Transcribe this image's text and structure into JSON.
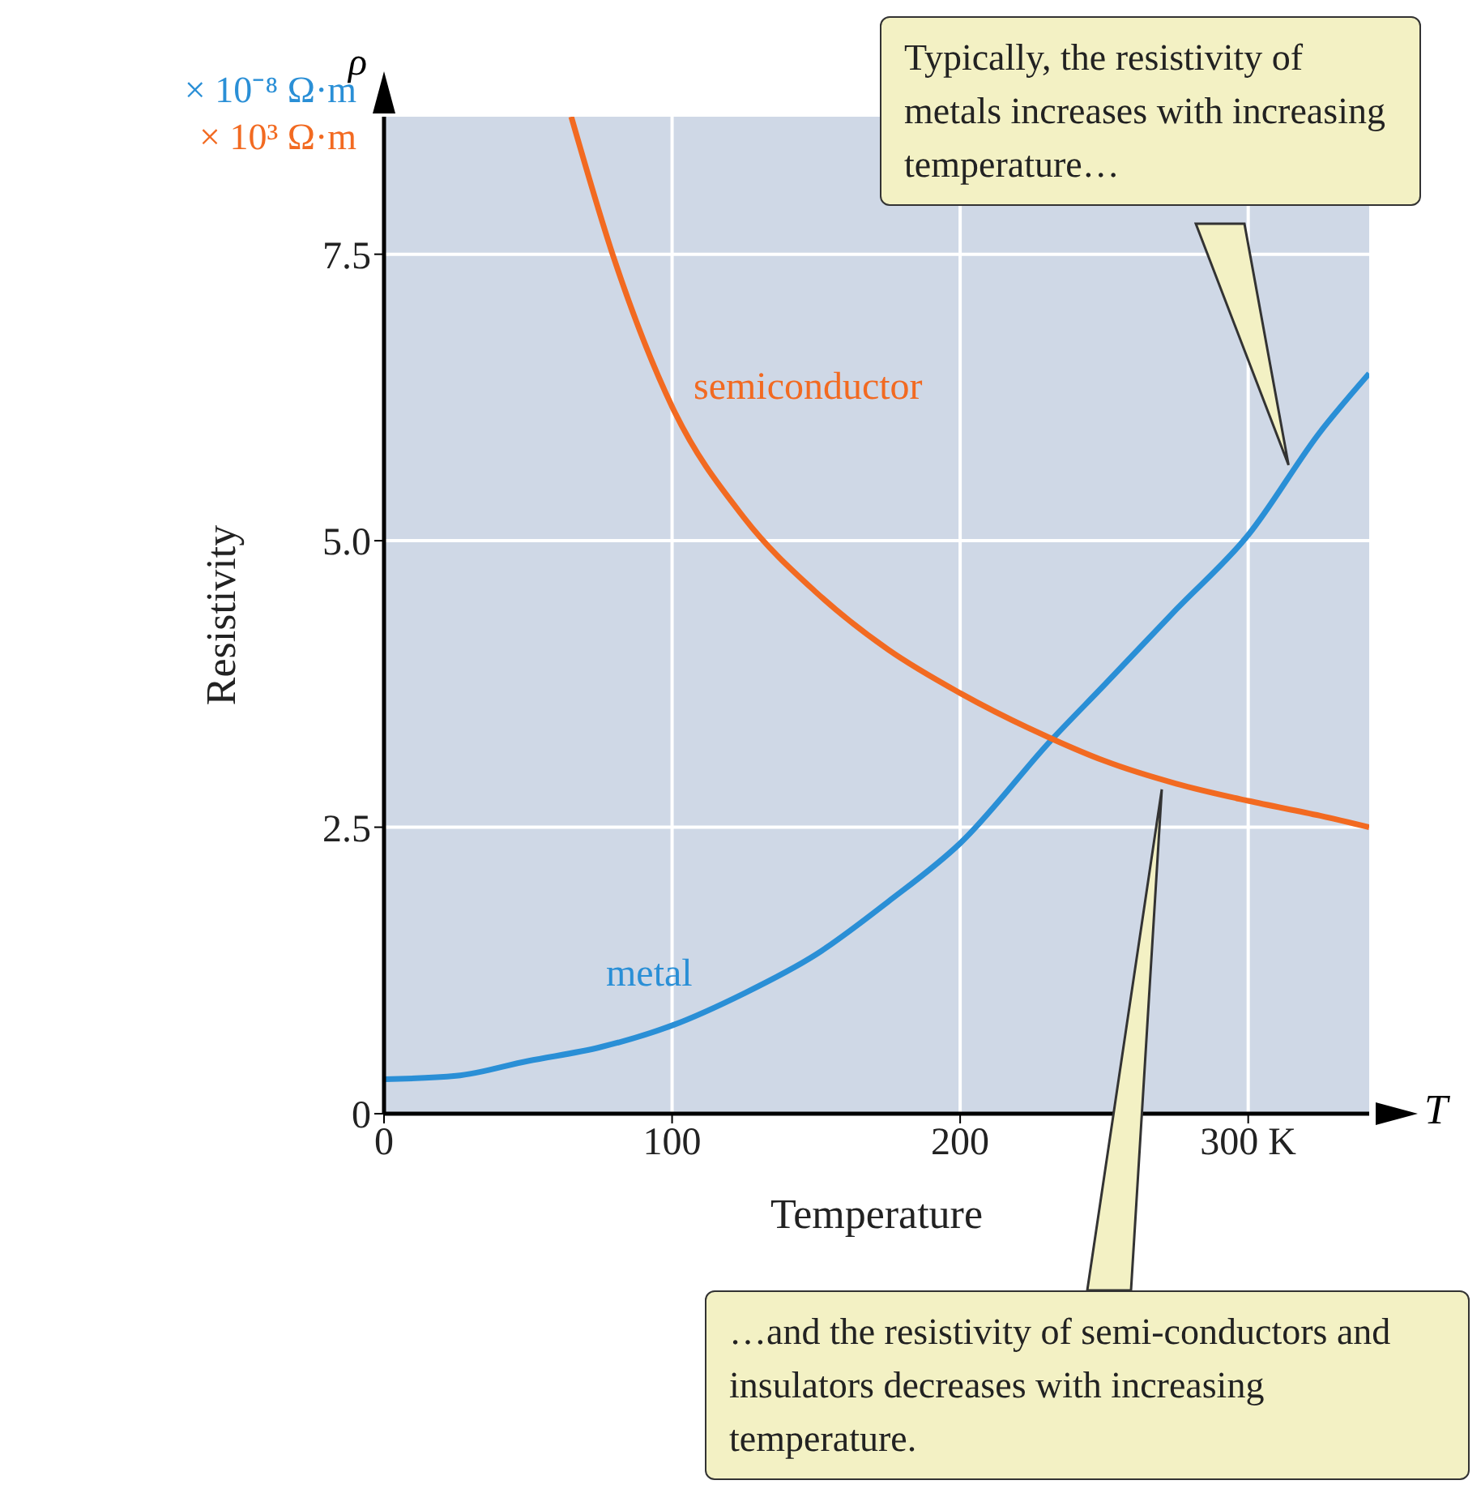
{
  "chart_data": {
    "type": "line",
    "xlabel": "Temperature",
    "ylabel": "Resistivity",
    "xlim": [
      0,
      342
    ],
    "xticks": [
      0,
      100,
      200,
      {
        "value": 300,
        "label": "300 K"
      }
    ],
    "ylim": [
      0,
      8.7
    ],
    "yticks": [
      0,
      2.5,
      {
        "value": 5,
        "label": "5.0"
      },
      7.5
    ],
    "grid": true,
    "marker": "none",
    "line_style": "solid",
    "series": [
      {
        "name": "metal",
        "color": "#2a8fd6",
        "x": [
          0,
          25,
          50,
          75,
          100,
          125,
          150,
          175,
          200,
          232,
          250,
          275,
          300,
          325,
          342
        ],
        "values": [
          0.3,
          0.33,
          0.46,
          0.58,
          0.77,
          1.05,
          1.39,
          1.85,
          2.36,
          3.27,
          3.74,
          4.4,
          5.05,
          5.95,
          6.46
        ]
      },
      {
        "name": "semiconductor",
        "color": "#f26a21",
        "x": [
          65,
          80,
          100,
          125,
          150,
          175,
          200,
          232,
          250,
          275,
          300,
          325,
          342
        ],
        "values": [
          8.7,
          7.45,
          6.17,
          5.2,
          4.55,
          4.05,
          3.67,
          3.27,
          3.08,
          2.88,
          2.73,
          2.6,
          2.5
        ]
      }
    ],
    "annotations": [
      "ρ",
      "× 10⁻⁸ Ω·m",
      "× 10³ Ω·m",
      "T",
      {
        "text": "Typically, the resistivity of metals increases with increasing temperature…",
        "x": 314,
        "y": 5.66
      },
      {
        "text": "…and the resistivity of semi-conductors and insulators decreases with increasing temperature.",
        "x": 270,
        "y": 2.83
      }
    ]
  }
}
